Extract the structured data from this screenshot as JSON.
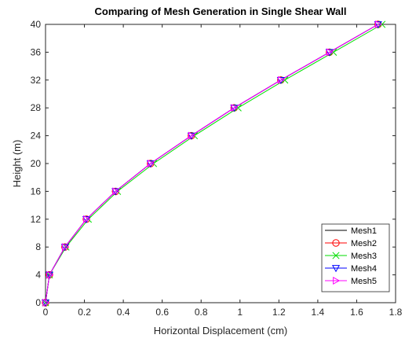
{
  "chart_data": {
    "type": "line",
    "title": "Comparing of Mesh Generation in Single Shear Wall",
    "xlabel": "Horizontal Displacement (cm)",
    "ylabel": "Height (m)",
    "xlim": [
      0,
      1.8
    ],
    "ylim": [
      0,
      40
    ],
    "xticks": [
      "0",
      "0.2",
      "0.4",
      "0.6",
      "0.8",
      "1",
      "1.2",
      "1.4",
      "1.6",
      "1.8"
    ],
    "yticks": [
      "0",
      "4",
      "8",
      "12",
      "16",
      "20",
      "24",
      "28",
      "32",
      "36",
      "40"
    ],
    "grid": false,
    "legend_position": "bottom-right",
    "series": [
      {
        "name": "Mesh1",
        "color": "#000000",
        "marker": "none",
        "x": [
          0,
          0.02,
          0.1,
          0.21,
          0.36,
          0.54,
          0.75,
          0.97,
          1.21,
          1.46,
          1.71
        ],
        "y": [
          0,
          4,
          8,
          12,
          16,
          20,
          24,
          28,
          32,
          36,
          40
        ]
      },
      {
        "name": "Mesh2",
        "color": "#ff0000",
        "marker": "circle",
        "x": [
          0,
          0.02,
          0.1,
          0.21,
          0.36,
          0.54,
          0.75,
          0.97,
          1.21,
          1.46,
          1.71
        ],
        "y": [
          0,
          4,
          8,
          12,
          16,
          20,
          24,
          28,
          32,
          36,
          40
        ]
      },
      {
        "name": "Mesh3",
        "color": "#00dd00",
        "marker": "x",
        "x": [
          0,
          0.02,
          0.105,
          0.22,
          0.37,
          0.555,
          0.765,
          0.99,
          1.23,
          1.48,
          1.73
        ],
        "y": [
          0,
          4,
          8,
          12,
          16,
          20,
          24,
          28,
          32,
          36,
          40
        ]
      },
      {
        "name": "Mesh4",
        "color": "#0000ff",
        "marker": "triangle-down",
        "x": [
          0,
          0.02,
          0.1,
          0.21,
          0.36,
          0.54,
          0.75,
          0.97,
          1.21,
          1.46,
          1.71
        ],
        "y": [
          0,
          4,
          8,
          12,
          16,
          20,
          24,
          28,
          32,
          36,
          40
        ]
      },
      {
        "name": "Mesh5",
        "color": "#ff00ff",
        "marker": "triangle-right",
        "x": [
          0,
          0.02,
          0.1,
          0.21,
          0.36,
          0.54,
          0.75,
          0.97,
          1.21,
          1.46,
          1.71
        ],
        "y": [
          0,
          4,
          8,
          12,
          16,
          20,
          24,
          28,
          32,
          36,
          40
        ]
      }
    ]
  }
}
